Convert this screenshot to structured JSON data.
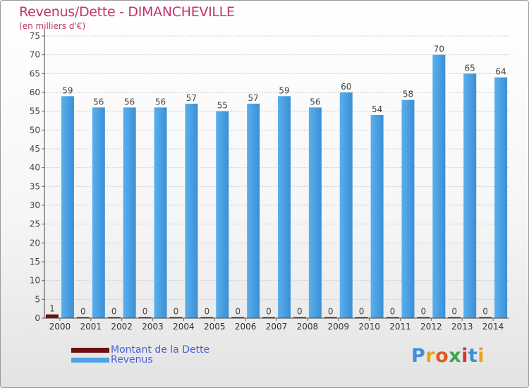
{
  "title": "Revenus/Dette - DIMANCHEVILLE",
  "subtitle": "(en milliers d'€)",
  "legend": [
    {
      "label": "Montant de la Dette",
      "color": "#6b0f0f"
    },
    {
      "label": "Revenus",
      "color": "#4ea3e4"
    }
  ],
  "logo": {
    "text": "Proxiti"
  },
  "chart_data": {
    "type": "bar",
    "categories": [
      "2000",
      "2001",
      "2002",
      "2003",
      "2004",
      "2005",
      "2006",
      "2007",
      "2008",
      "2009",
      "2010",
      "2011",
      "2012",
      "2013",
      "2014"
    ],
    "series": [
      {
        "name": "Montant de la Dette",
        "color": "#6b0f0f",
        "values": [
          1,
          0,
          0,
          0,
          0,
          0,
          0,
          0,
          0,
          0,
          0,
          0,
          0,
          0,
          0
        ]
      },
      {
        "name": "Revenus",
        "color": "#4ea3e4",
        "values": [
          59,
          56,
          56,
          56,
          57,
          55,
          57,
          59,
          56,
          60,
          54,
          58,
          70,
          65,
          64
        ]
      }
    ],
    "ylim": [
      0,
      75
    ],
    "ytick_step": 5,
    "grid": true
  }
}
